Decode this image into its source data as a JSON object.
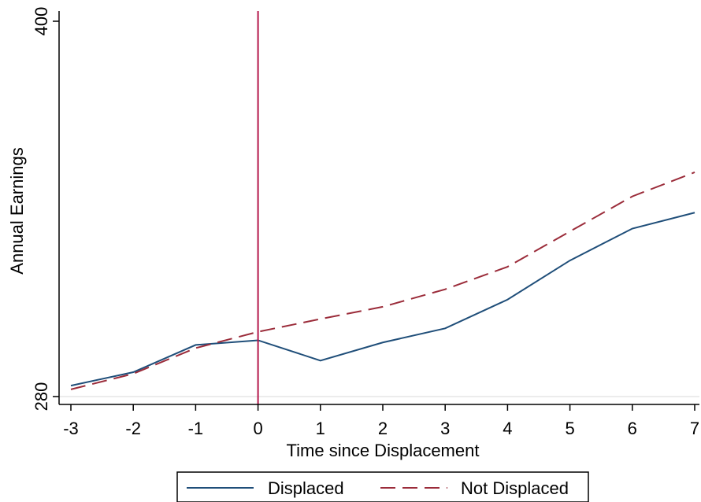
{
  "chart_data": {
    "type": "line",
    "xlabel": "Time since Displacement",
    "ylabel": "Annual Earnings",
    "x": [
      -3,
      -2,
      -1,
      0,
      1,
      2,
      3,
      4,
      5,
      6,
      7
    ],
    "xticks": [
      "-3",
      "-2",
      "-1",
      "0",
      "1",
      "2",
      "3",
      "4",
      "5",
      "6",
      "7"
    ],
    "yticks": [
      "280",
      "400"
    ],
    "ylim": [
      280,
      400
    ],
    "xlim": [
      -3,
      7
    ],
    "vline_x": 0,
    "series": [
      {
        "name": "Displaced",
        "color": "#1f4e79",
        "dash": "solid",
        "values": [
          283.5,
          287.8,
          296.5,
          298.0,
          291.5,
          297.3,
          301.8,
          311.0,
          323.5,
          333.7,
          338.8
        ]
      },
      {
        "name": "Not Displaced",
        "color": "#9b2c3a",
        "dash": "dashed",
        "values": [
          282.3,
          287.3,
          295.5,
          300.7,
          304.8,
          308.7,
          314.3,
          321.5,
          332.8,
          344.0,
          351.7
        ]
      }
    ],
    "vline_color": "#b5174b",
    "grid": false,
    "legend_position": "bottom"
  }
}
